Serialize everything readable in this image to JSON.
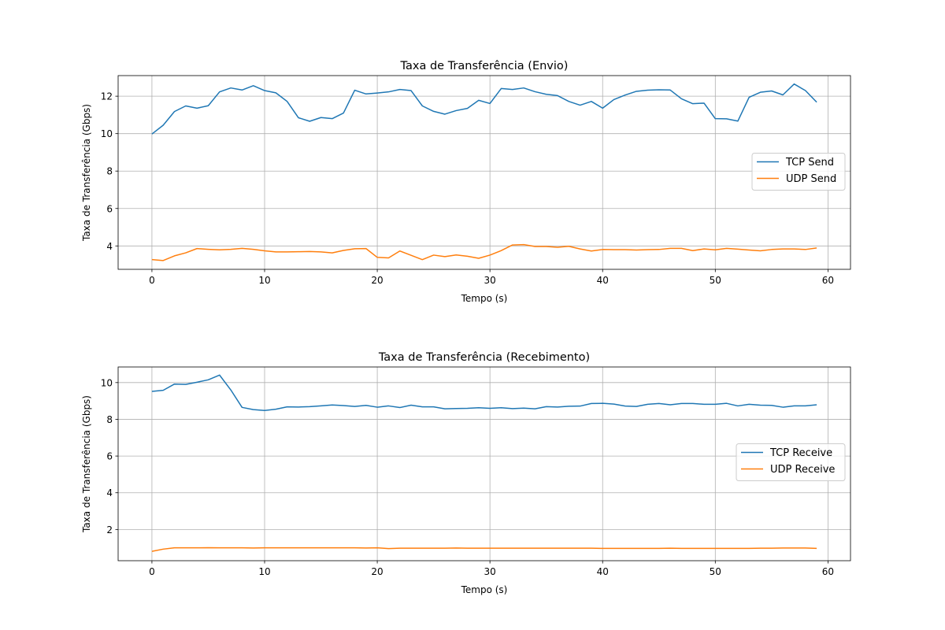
{
  "chart_data": [
    {
      "type": "line",
      "title": "Taxa de Transferência (Envio)",
      "xlabel": "Tempo (s)",
      "ylabel": "Taxa de Transferência (Gbps)",
      "xlim": [
        -3,
        62
      ],
      "ylim": [
        2.75,
        13.1
      ],
      "xticks": [
        0,
        10,
        20,
        30,
        40,
        50,
        60
      ],
      "yticks": [
        4,
        6,
        8,
        10,
        12
      ],
      "grid": true,
      "legend_position": "center-right",
      "x": [
        0,
        1,
        2,
        3,
        4,
        5,
        6,
        7,
        8,
        9,
        10,
        11,
        12,
        13,
        14,
        15,
        16,
        17,
        18,
        19,
        20,
        21,
        22,
        23,
        24,
        25,
        26,
        27,
        28,
        29,
        30,
        31,
        32,
        33,
        34,
        35,
        36,
        37,
        38,
        39,
        40,
        41,
        42,
        43,
        44,
        45,
        46,
        47,
        48,
        49,
        50,
        51,
        52,
        53,
        54,
        55,
        56,
        57,
        58,
        59
      ],
      "series": [
        {
          "name": "TCP Send",
          "color": "#1f77b4",
          "values": [
            9.98,
            10.45,
            11.18,
            11.48,
            11.36,
            11.49,
            12.23,
            12.44,
            12.33,
            12.56,
            12.3,
            12.18,
            11.72,
            10.85,
            10.66,
            10.86,
            10.8,
            11.1,
            12.32,
            12.12,
            12.17,
            12.23,
            12.36,
            12.3,
            11.48,
            11.19,
            11.04,
            11.23,
            11.35,
            11.78,
            11.61,
            12.41,
            12.36,
            12.44,
            12.24,
            12.1,
            12.03,
            11.72,
            11.52,
            11.72,
            11.36,
            11.82,
            12.06,
            12.26,
            12.32,
            12.34,
            12.33,
            11.86,
            11.6,
            11.63,
            10.8,
            10.79,
            10.67,
            11.94,
            12.21,
            12.28,
            12.07,
            12.65,
            12.3,
            11.68
          ]
        },
        {
          "name": "UDP Send",
          "color": "#ff7f0e",
          "values": [
            3.27,
            3.22,
            3.47,
            3.63,
            3.86,
            3.82,
            3.79,
            3.82,
            3.87,
            3.82,
            3.74,
            3.68,
            3.68,
            3.69,
            3.7,
            3.68,
            3.63,
            3.76,
            3.85,
            3.86,
            3.39,
            3.36,
            3.73,
            3.5,
            3.27,
            3.51,
            3.43,
            3.52,
            3.45,
            3.34,
            3.51,
            3.75,
            4.05,
            4.07,
            3.97,
            3.97,
            3.93,
            3.98,
            3.84,
            3.73,
            3.81,
            3.8,
            3.8,
            3.78,
            3.8,
            3.81,
            3.87,
            3.87,
            3.75,
            3.84,
            3.79,
            3.87,
            3.83,
            3.78,
            3.74,
            3.81,
            3.84,
            3.84,
            3.81,
            3.89
          ]
        }
      ]
    },
    {
      "type": "line",
      "title": "Taxa de Transferência (Recebimento)",
      "xlabel": "Tempo (s)",
      "ylabel": "Taxa de Transferência (Gbps)",
      "xlim": [
        -3,
        62
      ],
      "ylim": [
        0.3,
        10.85
      ],
      "xticks": [
        0,
        10,
        20,
        30,
        40,
        50,
        60
      ],
      "yticks": [
        2,
        4,
        6,
        8,
        10
      ],
      "grid": true,
      "legend_position": "center-right",
      "x": [
        0,
        1,
        2,
        3,
        4,
        5,
        6,
        7,
        8,
        9,
        10,
        11,
        12,
        13,
        14,
        15,
        16,
        17,
        18,
        19,
        20,
        21,
        22,
        23,
        24,
        25,
        26,
        27,
        28,
        29,
        30,
        31,
        32,
        33,
        34,
        35,
        36,
        37,
        38,
        39,
        40,
        41,
        42,
        43,
        44,
        45,
        46,
        47,
        48,
        49,
        50,
        51,
        52,
        53,
        54,
        55,
        56,
        57,
        58,
        59
      ],
      "series": [
        {
          "name": "TCP Receive",
          "color": "#1f77b4",
          "values": [
            9.52,
            9.58,
            9.92,
            9.9,
            10.02,
            10.15,
            10.41,
            9.6,
            8.65,
            8.53,
            8.48,
            8.55,
            8.68,
            8.67,
            8.69,
            8.73,
            8.78,
            8.75,
            8.7,
            8.76,
            8.66,
            8.73,
            8.64,
            8.77,
            8.68,
            8.68,
            8.57,
            8.59,
            8.6,
            8.63,
            8.6,
            8.63,
            8.58,
            8.61,
            8.57,
            8.69,
            8.67,
            8.71,
            8.72,
            8.86,
            8.87,
            8.83,
            8.72,
            8.7,
            8.82,
            8.86,
            8.79,
            8.86,
            8.86,
            8.82,
            8.82,
            8.87,
            8.73,
            8.82,
            8.77,
            8.76,
            8.66,
            8.73,
            8.73,
            8.79
          ]
        },
        {
          "name": "UDP Receive",
          "color": "#ff7f0e",
          "values": [
            0.81,
            0.93,
            1.0,
            1.0,
            1.0,
            1.01,
            1.0,
            1.0,
            1.0,
            0.99,
            1.0,
            1.0,
            1.0,
            1.0,
            1.0,
            1.0,
            1.0,
            1.0,
            1.0,
            0.99,
            1.0,
            0.96,
            0.98,
            0.98,
            0.98,
            0.98,
            0.98,
            0.99,
            0.98,
            0.98,
            0.98,
            0.98,
            0.98,
            0.98,
            0.98,
            0.98,
            0.98,
            0.98,
            0.98,
            0.98,
            0.97,
            0.97,
            0.97,
            0.97,
            0.97,
            0.97,
            0.98,
            0.97,
            0.97,
            0.97,
            0.97,
            0.97,
            0.97,
            0.97,
            0.98,
            0.98,
            0.99,
            0.99,
            0.99,
            0.97
          ]
        }
      ]
    }
  ]
}
